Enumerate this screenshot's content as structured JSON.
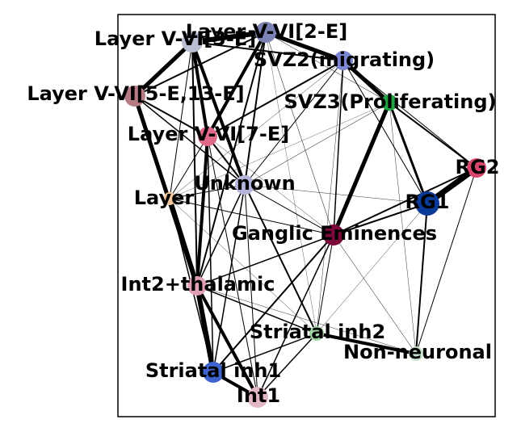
{
  "graph": {
    "nodes": [
      {
        "id": "l56_3e",
        "label": "Layer V-VI[3-E]",
        "color": "#b9bed2",
        "size": 13
      },
      {
        "id": "l56_2e",
        "label": "Layer V-VI[2-E]",
        "color": "#7b83b4",
        "size": 13
      },
      {
        "id": "svz2",
        "label": "SVZ2(migrating)",
        "color": "#7c86d2",
        "size": 12
      },
      {
        "id": "l56_5e13e",
        "label": "Layer V-VI[5-E,13-E]",
        "color": "#b77b86",
        "size": 13
      },
      {
        "id": "svz3",
        "label": "SVZ3(Proliferating)",
        "color": "#21a244",
        "size": 10
      },
      {
        "id": "l56_7e",
        "label": "Layer V-VI[7-E]",
        "color": "#e0698a",
        "size": 12
      },
      {
        "id": "rg2",
        "label": "RG2",
        "color": "#d8466b",
        "size": 12
      },
      {
        "id": "unknown",
        "label": "Unknown",
        "color": "#b3b5dd",
        "size": 12
      },
      {
        "id": "layer",
        "label": "Layer",
        "color": "#f2c79e",
        "size": 8
      },
      {
        "id": "rg1",
        "label": "RG1",
        "color": "#0a3a97",
        "size": 15
      },
      {
        "id": "ganglic",
        "label": "Ganglic Eminences",
        "color": "#7a0a3a",
        "size": 13
      },
      {
        "id": "int2",
        "label": "Int2+thalamic",
        "color": "#dea0b2",
        "size": 12
      },
      {
        "id": "striatal2",
        "label": "Striatal inh2",
        "color": "#9fd6a2",
        "size": 9
      },
      {
        "id": "nonneuronal",
        "label": "Non-neuronal",
        "color": "#c8e2cc",
        "size": 9
      },
      {
        "id": "striatal1",
        "label": "Striatal inh1",
        "color": "#3e63cf",
        "size": 13
      },
      {
        "id": "int1",
        "label": "Int1",
        "color": "#e0b7c2",
        "size": 13
      }
    ],
    "edges": [
      {
        "source": "l56_3e",
        "target": "l56_2e",
        "weight": 6
      },
      {
        "source": "l56_3e",
        "target": "l56_5e13e",
        "weight": 5
      },
      {
        "source": "l56_3e",
        "target": "l56_7e",
        "weight": 4
      },
      {
        "source": "l56_3e",
        "target": "unknown",
        "weight": 4
      },
      {
        "source": "l56_3e",
        "target": "int2",
        "weight": 2
      },
      {
        "source": "l56_3e",
        "target": "layer",
        "weight": 1
      },
      {
        "source": "l56_3e",
        "target": "svz2",
        "weight": 2
      },
      {
        "source": "l56_2e",
        "target": "svz2",
        "weight": 5
      },
      {
        "source": "l56_2e",
        "target": "l56_7e",
        "weight": 4
      },
      {
        "source": "l56_2e",
        "target": "unknown",
        "weight": 2
      },
      {
        "source": "l56_2e",
        "target": "int2",
        "weight": 2
      },
      {
        "source": "l56_2e",
        "target": "l56_5e13e",
        "weight": 2
      },
      {
        "source": "l56_2e",
        "target": "ganglic",
        "weight": 0.5
      },
      {
        "source": "l56_2e",
        "target": "svz3",
        "weight": 0.5
      },
      {
        "source": "l56_2e",
        "target": "striatal2",
        "weight": 0.3
      },
      {
        "source": "svz2",
        "target": "svz3",
        "weight": 5
      },
      {
        "source": "svz2",
        "target": "l56_7e",
        "weight": 2
      },
      {
        "source": "svz2",
        "target": "ganglic",
        "weight": 1.5
      },
      {
        "source": "svz2",
        "target": "unknown",
        "weight": 1
      },
      {
        "source": "svz2",
        "target": "rg1",
        "weight": 1
      },
      {
        "source": "svz2",
        "target": "striatal2",
        "weight": 0.4
      },
      {
        "source": "svz2",
        "target": "layer",
        "weight": 0.4
      },
      {
        "source": "svz3",
        "target": "rg1",
        "weight": 3
      },
      {
        "source": "svz3",
        "target": "rg2",
        "weight": 2
      },
      {
        "source": "svz3",
        "target": "ganglic",
        "weight": 5
      },
      {
        "source": "svz3",
        "target": "unknown",
        "weight": 0.5
      },
      {
        "source": "svz3",
        "target": "layer",
        "weight": 0.3
      },
      {
        "source": "svz3",
        "target": "nonneuronal",
        "weight": 0.4
      },
      {
        "source": "l56_5e13e",
        "target": "l56_7e",
        "weight": 2
      },
      {
        "source": "l56_5e13e",
        "target": "int2",
        "weight": 5
      },
      {
        "source": "l56_5e13e",
        "target": "unknown",
        "weight": 1.5
      },
      {
        "source": "l56_5e13e",
        "target": "layer",
        "weight": 1
      },
      {
        "source": "l56_7e",
        "target": "unknown",
        "weight": 2
      },
      {
        "source": "l56_7e",
        "target": "int2",
        "weight": 4
      },
      {
        "source": "l56_7e",
        "target": "layer",
        "weight": 1
      },
      {
        "source": "l56_7e",
        "target": "striatal1",
        "weight": 1.5
      },
      {
        "source": "l56_7e",
        "target": "ganglic",
        "weight": 0.4
      },
      {
        "source": "l56_7e",
        "target": "int1",
        "weight": 1
      },
      {
        "source": "rg2",
        "target": "rg1",
        "weight": 7
      },
      {
        "source": "rg2",
        "target": "ganglic",
        "weight": 2
      },
      {
        "source": "rg2",
        "target": "nonneuronal",
        "weight": 1
      },
      {
        "source": "rg2",
        "target": "svz2",
        "weight": 1
      },
      {
        "source": "rg1",
        "target": "ganglic",
        "weight": 2
      },
      {
        "source": "rg1",
        "target": "nonneuronal",
        "weight": 2
      },
      {
        "source": "rg1",
        "target": "unknown",
        "weight": 0.4
      },
      {
        "source": "rg1",
        "target": "striatal2",
        "weight": 0.4
      },
      {
        "source": "unknown",
        "target": "ganglic",
        "weight": 1
      },
      {
        "source": "unknown",
        "target": "int2",
        "weight": 1.5
      },
      {
        "source": "unknown",
        "target": "layer",
        "weight": 1
      },
      {
        "source": "unknown",
        "target": "striatal2",
        "weight": 2
      },
      {
        "source": "unknown",
        "target": "striatal1",
        "weight": 1.5
      },
      {
        "source": "unknown",
        "target": "int1",
        "weight": 1
      },
      {
        "source": "layer",
        "target": "int2",
        "weight": 6
      },
      {
        "source": "layer",
        "target": "ganglic",
        "weight": 1
      },
      {
        "source": "layer",
        "target": "striatal1",
        "weight": 1.5
      },
      {
        "source": "ganglic",
        "target": "int2",
        "weight": 1.5
      },
      {
        "source": "ganglic",
        "target": "striatal1",
        "weight": 2
      },
      {
        "source": "ganglic",
        "target": "int1",
        "weight": 1.5
      },
      {
        "source": "ganglic",
        "target": "striatal2",
        "weight": 1
      },
      {
        "source": "ganglic",
        "target": "nonneuronal",
        "weight": 0.5
      },
      {
        "source": "int2",
        "target": "striatal1",
        "weight": 6
      },
      {
        "source": "int2",
        "target": "int1",
        "weight": 4
      },
      {
        "source": "int2",
        "target": "striatal2",
        "weight": 1.5
      },
      {
        "source": "int2",
        "target": "nonneuronal",
        "weight": 0.4
      },
      {
        "source": "striatal2",
        "target": "nonneuronal",
        "weight": 4
      },
      {
        "source": "striatal2",
        "target": "striatal1",
        "weight": 1.5
      },
      {
        "source": "striatal2",
        "target": "int1",
        "weight": 1.5
      },
      {
        "source": "striatal1",
        "target": "int1",
        "weight": 4
      },
      {
        "source": "layer",
        "target": "striatal2",
        "weight": 0.4
      }
    ]
  }
}
